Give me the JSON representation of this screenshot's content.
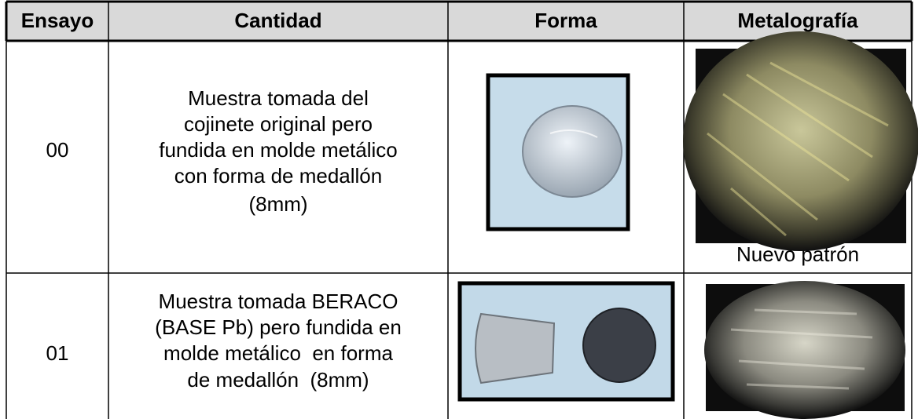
{
  "table": {
    "header": [
      "Ensayo",
      "Cantidad",
      "Forma",
      "Metalografía"
    ],
    "rows": [
      {
        "ensayo": "00",
        "cantidad": [
          "Muestra tomada del",
          "cojinete original pero",
          "fundida en molde metálico",
          "con forma de medallón",
          "(8mm)"
        ],
        "caption": "Nuevo patrón"
      },
      {
        "ensayo": "01",
        "cantidad": [
          "Muestra tomada BERACO",
          "(BASE Pb) pero fundida en",
          "molde metálico  en forma",
          "de medallón  (8mm)"
        ]
      }
    ]
  }
}
